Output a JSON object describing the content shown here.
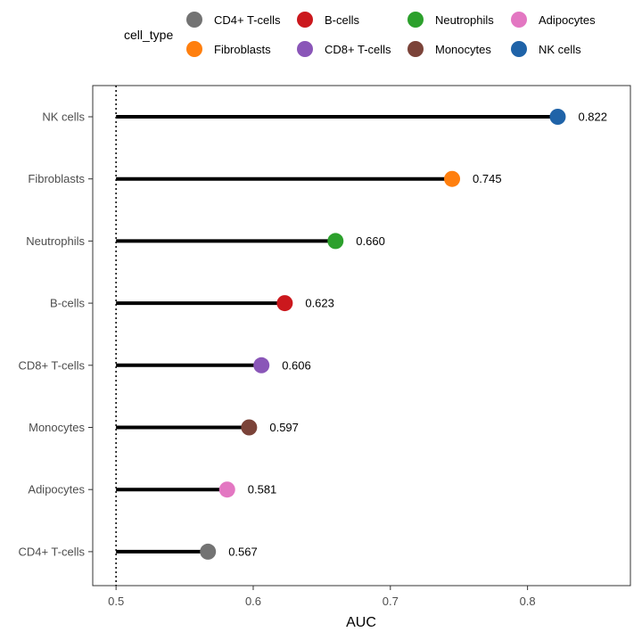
{
  "chart_data": {
    "type": "scatter",
    "subtype": "lollipop",
    "title": "",
    "xlabel": "AUC",
    "ylabel": "",
    "xlim": [
      0.483,
      0.875
    ],
    "x_ticks": [
      "0.5",
      "0.6",
      "0.7",
      "0.8"
    ],
    "baseline": 0.5,
    "baseline_style": "dotted",
    "grid": false,
    "legend": {
      "title": "cell_type",
      "placement": "top",
      "items": [
        {
          "label": "CD4+ T-cells",
          "color": "#737373"
        },
        {
          "label": "B-cells",
          "color": "#cb181d"
        },
        {
          "label": "Neutrophils",
          "color": "#2ca02c"
        },
        {
          "label": "Adipocytes",
          "color": "#e377c2"
        },
        {
          "label": "Fibroblasts",
          "color": "#ff7f0e"
        },
        {
          "label": "CD8+ T-cells",
          "color": "#8a56b8"
        },
        {
          "label": "Monocytes",
          "color": "#7b4339"
        },
        {
          "label": "NK cells",
          "color": "#1f63a8"
        }
      ]
    },
    "categories": [
      "NK cells",
      "Fibroblasts",
      "Neutrophils",
      "B-cells",
      "CD8+ T-cells",
      "Monocytes",
      "Adipocytes",
      "CD4+ T-cells"
    ],
    "values": [
      0.822,
      0.745,
      0.66,
      0.623,
      0.606,
      0.597,
      0.581,
      0.567
    ],
    "value_labels": [
      "0.822",
      "0.745",
      "0.660",
      "0.623",
      "0.606",
      "0.597",
      "0.581",
      "0.567"
    ],
    "colors": [
      "#1f63a8",
      "#ff7f0e",
      "#2ca02c",
      "#cb181d",
      "#8a56b8",
      "#7b4339",
      "#e377c2",
      "#737373"
    ]
  }
}
